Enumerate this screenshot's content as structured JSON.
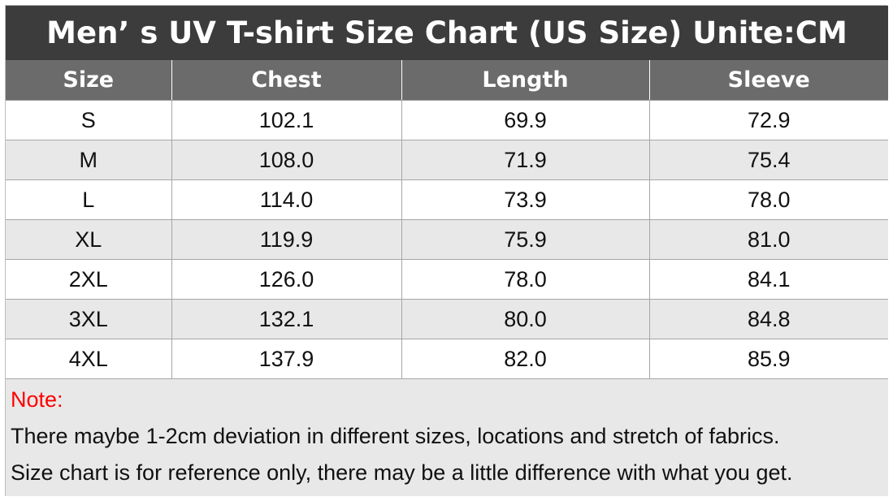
{
  "title": "Men’  s UV T-shirt Size Chart (US Size)  Unite:CM",
  "columns": [
    "Size",
    "Chest",
    "Length",
    "Sleeve"
  ],
  "rows": [
    [
      "S",
      "102.1",
      "69.9",
      "72.9"
    ],
    [
      "M",
      "108.0",
      "71.9",
      "75.4"
    ],
    [
      "L",
      "114.0",
      "73.9",
      "78.0"
    ],
    [
      "XL",
      "119.9",
      "75.9",
      "81.0"
    ],
    [
      "2XL",
      "126.0",
      "78.0",
      "84.1"
    ],
    [
      "3XL",
      "132.1",
      "80.0",
      "84.8"
    ],
    [
      "4XL",
      "137.9",
      "82.0",
      "85.9"
    ]
  ],
  "notes": {
    "label": "Note:",
    "lines": [
      "There maybe 1-2cm deviation in different sizes, locations and stretch of fabrics.",
      "Size chart is for reference only, there may be a little difference with what you get."
    ]
  },
  "colors": {
    "title_bg": "#3c3c3c",
    "header_bg": "#6b6b6b",
    "alt_row_bg": "#e8e8e8",
    "note_label": "#ff0000"
  }
}
